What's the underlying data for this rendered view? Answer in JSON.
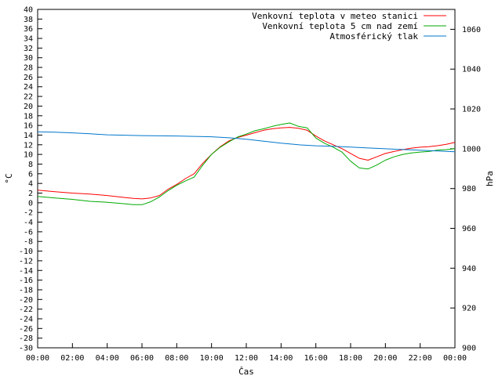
{
  "chart_data": {
    "type": "line",
    "title": "",
    "xlabel": "Čas",
    "ylabel": "°C",
    "y2label": "hPa",
    "xlim": [
      0,
      24
    ],
    "ylim": [
      -30,
      40
    ],
    "y2lim": [
      900,
      1070
    ],
    "grid": false,
    "legend_position": "top-right",
    "x_tick_labels": [
      "00:00",
      "02:00",
      "04:00",
      "06:00",
      "08:00",
      "10:00",
      "12:00",
      "14:00",
      "16:00",
      "18:00",
      "20:00",
      "22:00",
      "00:00"
    ],
    "y_ticks": [
      -30,
      -28,
      -26,
      -24,
      -22,
      -20,
      -18,
      -16,
      -14,
      -12,
      -10,
      -8,
      -6,
      -4,
      -2,
      0,
      2,
      4,
      6,
      8,
      10,
      12,
      14,
      16,
      18,
      20,
      22,
      24,
      26,
      28,
      30,
      32,
      34,
      36,
      38,
      40
    ],
    "y2_ticks": [
      900,
      920,
      940,
      960,
      980,
      1000,
      1020,
      1040,
      1060
    ],
    "series": [
      {
        "name": "Venkovní teplota v meteo stanici",
        "color": "#ff0000",
        "axis": "left",
        "x": [
          0,
          1,
          2,
          3,
          4,
          5,
          5.5,
          6,
          6.5,
          7,
          7.5,
          8,
          8.5,
          9,
          9.5,
          10,
          10.5,
          11,
          11.5,
          12,
          12.5,
          13,
          13.5,
          14,
          14.5,
          15,
          15.5,
          16,
          16.5,
          17,
          17.5,
          18,
          18.5,
          19,
          19.5,
          20,
          20.5,
          21,
          21.5,
          22,
          22.5,
          23,
          23.5,
          24
        ],
        "y": [
          2.6,
          2.3,
          2.0,
          1.8,
          1.5,
          1.1,
          0.9,
          0.8,
          1.0,
          1.5,
          2.8,
          3.8,
          5.0,
          6.0,
          8.2,
          10.0,
          11.6,
          12.8,
          13.5,
          14.0,
          14.5,
          15.0,
          15.3,
          15.5,
          15.6,
          15.4,
          15.0,
          13.8,
          12.8,
          12.0,
          11.2,
          10.2,
          9.2,
          8.8,
          9.5,
          10.2,
          10.6,
          11.0,
          11.3,
          11.5,
          11.6,
          11.8,
          12.1,
          12.5
        ]
      },
      {
        "name": "Venkovní teplota 5 cm nad zemí",
        "color": "#00aa00",
        "axis": "left",
        "x": [
          0,
          1,
          2,
          3,
          4,
          5,
          5.5,
          6,
          6.5,
          7,
          7.5,
          8,
          8.5,
          9,
          9.5,
          10,
          10.5,
          11,
          11.5,
          12,
          12.5,
          13,
          13.5,
          14,
          14.5,
          15,
          15.5,
          16,
          16.5,
          17,
          17.5,
          18,
          18.5,
          19,
          19.5,
          20,
          20.5,
          21,
          21.5,
          22,
          22.5,
          23,
          23.5,
          24
        ],
        "y": [
          1.3,
          1.0,
          0.7,
          0.3,
          0.1,
          -0.2,
          -0.4,
          -0.4,
          0.2,
          1.2,
          2.5,
          3.6,
          4.5,
          5.3,
          7.8,
          10.0,
          11.5,
          12.6,
          13.6,
          14.2,
          14.9,
          15.3,
          15.8,
          16.2,
          16.5,
          15.8,
          15.5,
          13.4,
          12.3,
          11.5,
          10.5,
          8.6,
          7.2,
          7.0,
          7.8,
          8.8,
          9.5,
          10.0,
          10.3,
          10.5,
          10.6,
          10.9,
          11.0,
          11.2
        ]
      },
      {
        "name": "Atmosférický tlak",
        "color": "#0077cc",
        "axis": "right",
        "x": [
          0,
          1,
          2,
          3,
          4,
          5,
          6,
          7,
          8,
          9,
          10,
          11,
          12,
          13,
          14,
          15,
          16,
          17,
          18,
          19,
          20,
          21,
          22,
          23,
          24
        ],
        "y": [
          1008.5,
          1008.3,
          1008,
          1007.5,
          1007,
          1006.8,
          1006.6,
          1006.5,
          1006.4,
          1006.2,
          1006,
          1005.5,
          1004.8,
          1003.8,
          1002.8,
          1002,
          1001.5,
          1001.2,
          1000.8,
          1000.4,
          1000,
          999.6,
          999.3,
          998.9,
          998.5
        ]
      }
    ]
  }
}
